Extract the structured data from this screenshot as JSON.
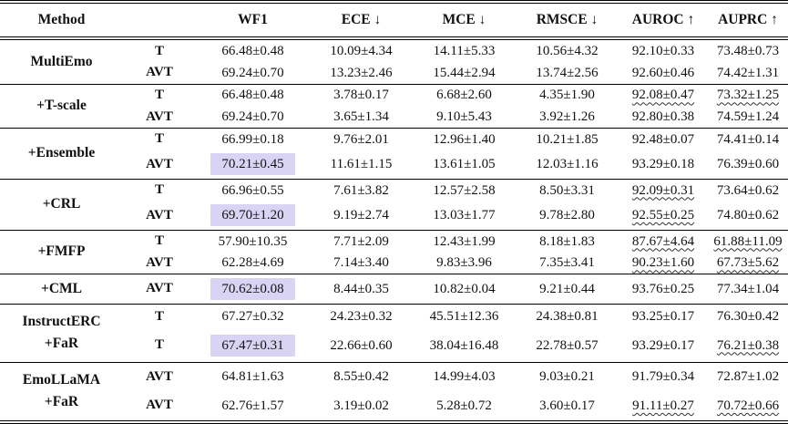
{
  "colors": {
    "highlight": "#d9d4f3"
  },
  "table": {
    "headers": [
      "Method",
      "",
      "WF1",
      "ECE ↓",
      "MCE ↓",
      "RMSCE ↓",
      "AUROC ↑",
      "AUPRC ↑"
    ],
    "groups": [
      {
        "method": [
          "MultiEmo"
        ],
        "rows": [
          {
            "modality": "T",
            "cells": [
              {
                "v": "66.48±0.48"
              },
              {
                "v": "10.09±4.34"
              },
              {
                "v": "14.11±5.33"
              },
              {
                "v": "10.56±4.32"
              },
              {
                "v": "92.10±0.33"
              },
              {
                "v": "73.48±0.73"
              }
            ]
          },
          {
            "modality": "AVT",
            "cells": [
              {
                "v": "69.24±0.70"
              },
              {
                "v": "13.23±2.46"
              },
              {
                "v": "15.44±2.94"
              },
              {
                "v": "13.74±2.56"
              },
              {
                "v": "92.60±0.46"
              },
              {
                "v": "74.42±1.31"
              }
            ]
          }
        ]
      },
      {
        "method": [
          "+T-scale"
        ],
        "rows": [
          {
            "modality": "T",
            "cells": [
              {
                "v": "66.48±0.48"
              },
              {
                "v": "3.78±0.17"
              },
              {
                "v": "6.68±2.60"
              },
              {
                "v": "4.35±1.90"
              },
              {
                "v": "92.08±0.47",
                "wavy": true
              },
              {
                "v": "73.32±1.25",
                "wavy": true
              }
            ]
          },
          {
            "modality": "AVT",
            "cells": [
              {
                "v": "69.24±0.70"
              },
              {
                "v": "3.65±1.34"
              },
              {
                "v": "9.10±5.43"
              },
              {
                "v": "3.92±1.26"
              },
              {
                "v": "92.80±0.38"
              },
              {
                "v": "74.59±1.24"
              }
            ]
          }
        ]
      },
      {
        "method": [
          "+Ensemble"
        ],
        "rows": [
          {
            "modality": "T",
            "cells": [
              {
                "v": "66.99±0.18"
              },
              {
                "v": "9.76±2.01"
              },
              {
                "v": "12.96±1.40"
              },
              {
                "v": "10.21±1.85"
              },
              {
                "v": "92.48±0.07"
              },
              {
                "v": "74.41±0.14"
              }
            ]
          },
          {
            "modality": "AVT",
            "cells": [
              {
                "v": "70.21±0.45",
                "hl": true
              },
              {
                "v": "11.61±1.15"
              },
              {
                "v": "13.61±1.05"
              },
              {
                "v": "12.03±1.16"
              },
              {
                "v": "93.29±0.18"
              },
              {
                "v": "76.39±0.60"
              }
            ]
          }
        ]
      },
      {
        "method": [
          "+CRL"
        ],
        "rows": [
          {
            "modality": "T",
            "cells": [
              {
                "v": "66.96±0.55"
              },
              {
                "v": "7.61±3.82"
              },
              {
                "v": "12.57±2.58"
              },
              {
                "v": "8.50±3.31"
              },
              {
                "v": "92.09±0.31",
                "wavy": true
              },
              {
                "v": "73.64±0.62"
              }
            ]
          },
          {
            "modality": "AVT",
            "cells": [
              {
                "v": "69.70±1.20",
                "hl": true
              },
              {
                "v": "9.19±2.74"
              },
              {
                "v": "13.03±1.77"
              },
              {
                "v": "9.78±2.80"
              },
              {
                "v": "92.55±0.25",
                "wavy": true
              },
              {
                "v": "74.80±0.62"
              }
            ]
          }
        ]
      },
      {
        "method": [
          "+FMFP"
        ],
        "rows": [
          {
            "modality": "T",
            "cells": [
              {
                "v": "57.90±10.35"
              },
              {
                "v": "7.71±2.09"
              },
              {
                "v": "12.43±1.99"
              },
              {
                "v": "8.18±1.83"
              },
              {
                "v": "87.67±4.64",
                "wavy": true
              },
              {
                "v": "61.88±11.09",
                "wavy": true
              }
            ]
          },
          {
            "modality": "AVT",
            "cells": [
              {
                "v": "62.28±4.69"
              },
              {
                "v": "7.14±3.40"
              },
              {
                "v": "9.83±3.96"
              },
              {
                "v": "7.35±3.41"
              },
              {
                "v": "90.23±1.60",
                "wavy": true
              },
              {
                "v": "67.73±5.62",
                "wavy": true
              }
            ]
          }
        ]
      },
      {
        "method": [
          "+CML"
        ],
        "rows": [
          {
            "modality": "AVT",
            "cells": [
              {
                "v": "70.62±0.08",
                "hl": true
              },
              {
                "v": "8.44±0.35"
              },
              {
                "v": "10.82±0.04"
              },
              {
                "v": "9.21±0.44"
              },
              {
                "v": "93.76±0.25"
              },
              {
                "v": "77.34±1.04"
              }
            ]
          }
        ]
      },
      {
        "method": [
          "InstructERC",
          "+FaR"
        ],
        "rows": [
          {
            "modality": "T",
            "cells": [
              {
                "v": "67.27±0.32"
              },
              {
                "v": "24.23±0.32"
              },
              {
                "v": "45.51±12.36"
              },
              {
                "v": "24.38±0.81"
              },
              {
                "v": "93.25±0.17"
              },
              {
                "v": "76.30±0.42"
              }
            ]
          },
          {
            "modality": "T",
            "cells": [
              {
                "v": "67.47±0.31",
                "hl": true
              },
              {
                "v": "22.66±0.60"
              },
              {
                "v": "38.04±16.48"
              },
              {
                "v": "22.78±0.57"
              },
              {
                "v": "93.29±0.17"
              },
              {
                "v": "76.21±0.38",
                "wavy": true
              }
            ]
          }
        ]
      },
      {
        "method": [
          "EmoLLaMA",
          "+FaR"
        ],
        "rows": [
          {
            "modality": "AVT",
            "cells": [
              {
                "v": "64.81±1.63"
              },
              {
                "v": "8.55±0.42"
              },
              {
                "v": "14.99±4.03"
              },
              {
                "v": "9.03±0.21"
              },
              {
                "v": "91.79±0.34"
              },
              {
                "v": "72.87±1.02"
              }
            ]
          },
          {
            "modality": "AVT",
            "cells": [
              {
                "v": "62.76±1.57"
              },
              {
                "v": "3.19±0.02"
              },
              {
                "v": "5.28±0.72"
              },
              {
                "v": "3.60±0.17"
              },
              {
                "v": "91.11±0.27",
                "wavy": true
              },
              {
                "v": "70.72±0.66",
                "wavy": true
              }
            ]
          }
        ]
      }
    ]
  }
}
